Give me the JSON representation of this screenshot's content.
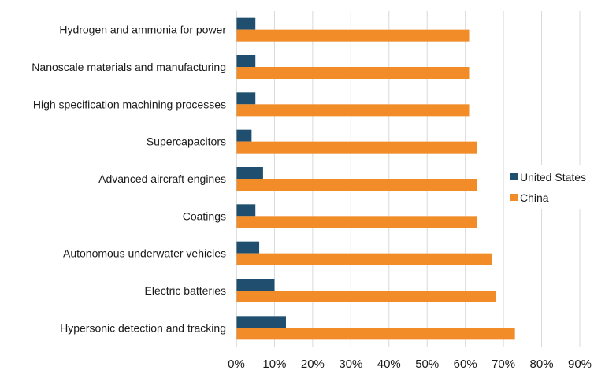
{
  "chart_data": {
    "type": "bar",
    "orientation": "horizontal",
    "title": "",
    "xlabel": "",
    "ylabel": "",
    "xlim": [
      0,
      90
    ],
    "x_ticks": [
      0,
      10,
      20,
      30,
      40,
      50,
      60,
      70,
      80,
      90
    ],
    "x_tick_labels": [
      "0%",
      "10%",
      "20%",
      "30%",
      "40%",
      "50%",
      "60%",
      "70%",
      "80%",
      "90%"
    ],
    "grid": "vertical",
    "legend_position": "right",
    "categories": [
      "Hydrogen and ammonia for power",
      "Nanoscale materials and manufacturing",
      "High specification machining processes",
      "Supercapacitors",
      "Advanced aircraft engines",
      "Coatings",
      "Autonomous underwater vehicles",
      "Electric batteries",
      "Hypersonic detection and tracking"
    ],
    "series": [
      {
        "name": "United States",
        "color": "#1f4e6e",
        "values": [
          5,
          5,
          5,
          4,
          7,
          5,
          6,
          10,
          13
        ]
      },
      {
        "name": "China",
        "color": "#f28c28",
        "values": [
          61,
          61,
          61,
          63,
          63,
          63,
          67,
          68,
          73
        ]
      }
    ]
  }
}
